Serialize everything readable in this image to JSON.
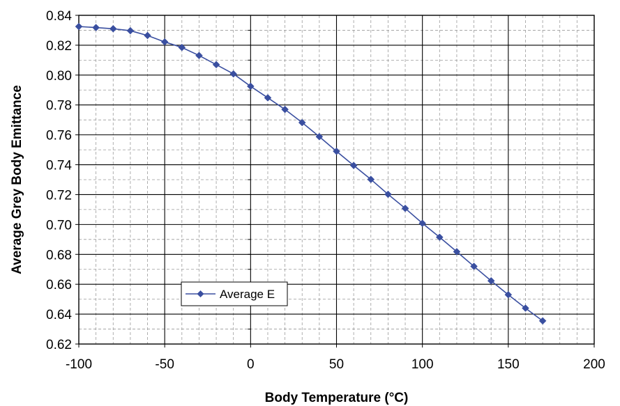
{
  "chart_data": {
    "type": "line",
    "title": "",
    "xlabel": "Body Temperature (°C)",
    "ylabel": "Average Grey Body Emittance",
    "xlim": [
      -100,
      200
    ],
    "ylim": [
      0.62,
      0.84
    ],
    "x_ticks": [
      "-100",
      "-50",
      "0",
      "50",
      "100",
      "150",
      "200"
    ],
    "y_ticks": [
      "0.62",
      "0.64",
      "0.66",
      "0.68",
      "0.70",
      "0.72",
      "0.74",
      "0.76",
      "0.78",
      "0.80",
      "0.82",
      "0.84"
    ],
    "grid": "major solid, minor dashed",
    "legend_position": "lower-left",
    "series": [
      {
        "name": "Average E",
        "color": "#3a4fa0",
        "marker": "diamond",
        "x": [
          -100,
          -90,
          -80,
          -70,
          -60,
          -50,
          -40,
          -30,
          -20,
          -10,
          0,
          10,
          20,
          30,
          40,
          50,
          60,
          70,
          80,
          90,
          100,
          110,
          120,
          130,
          140,
          150,
          160,
          170
        ],
        "y": [
          0.8325,
          0.8318,
          0.831,
          0.8297,
          0.8265,
          0.8222,
          0.8185,
          0.8131,
          0.807,
          0.8008,
          0.7925,
          0.7848,
          0.777,
          0.7682,
          0.7588,
          0.749,
          0.7395,
          0.7302,
          0.7202,
          0.7108,
          0.7008,
          0.6915,
          0.6818,
          0.672,
          0.6623,
          0.653,
          0.644,
          0.6355
        ]
      }
    ]
  }
}
